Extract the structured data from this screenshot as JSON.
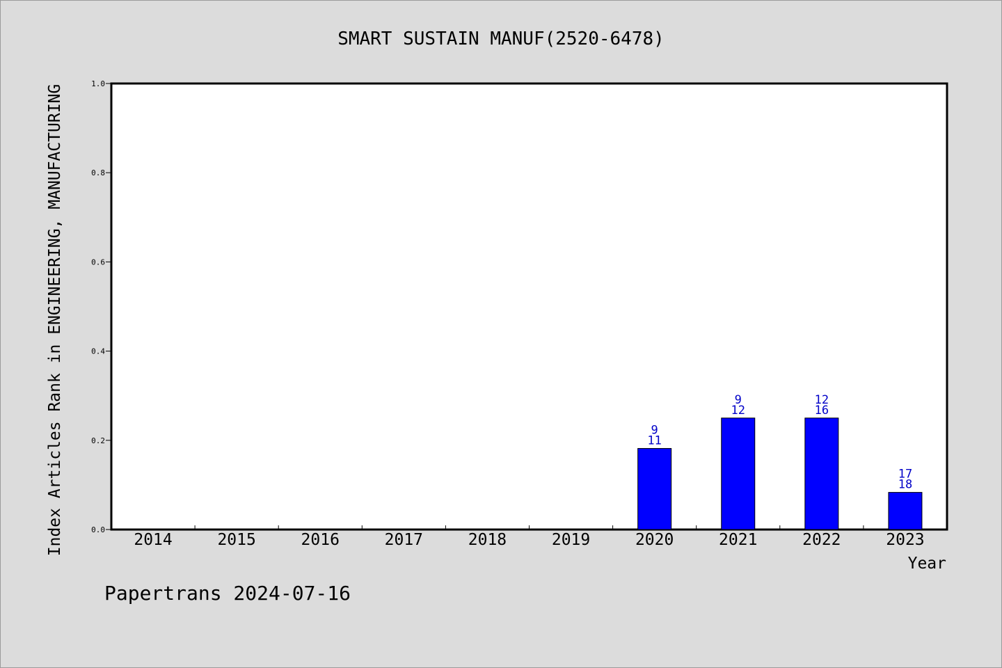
{
  "chart_data": {
    "type": "bar",
    "title": "SMART SUSTAIN MANUF(2520-6478)",
    "ylabel": "Index Articles Rank in ENGINEERING, MANUFACTURING",
    "xlabel": "Year",
    "ylim": [
      0,
      1.0
    ],
    "yticks": [
      "0.0",
      "0.2",
      "0.4",
      "0.6",
      "0.8",
      "1.0"
    ],
    "categories": [
      "2014",
      "2015",
      "2016",
      "2017",
      "2018",
      "2019",
      "2020",
      "2021",
      "2022",
      "2023"
    ],
    "values": [
      null,
      null,
      null,
      null,
      null,
      null,
      0.1818,
      0.25,
      0.25,
      0.0833
    ],
    "label_top": [
      "",
      "",
      "",
      "",
      "",
      "",
      "9",
      "9",
      "12",
      "17"
    ],
    "label_bottom": [
      "",
      "",
      "",
      "",
      "",
      "",
      "11",
      "12",
      "16",
      "18"
    ],
    "bar_color": "#0000ff",
    "label_color": "#0000c8",
    "grid": false
  },
  "footer": "Papertrans 2024-07-16"
}
